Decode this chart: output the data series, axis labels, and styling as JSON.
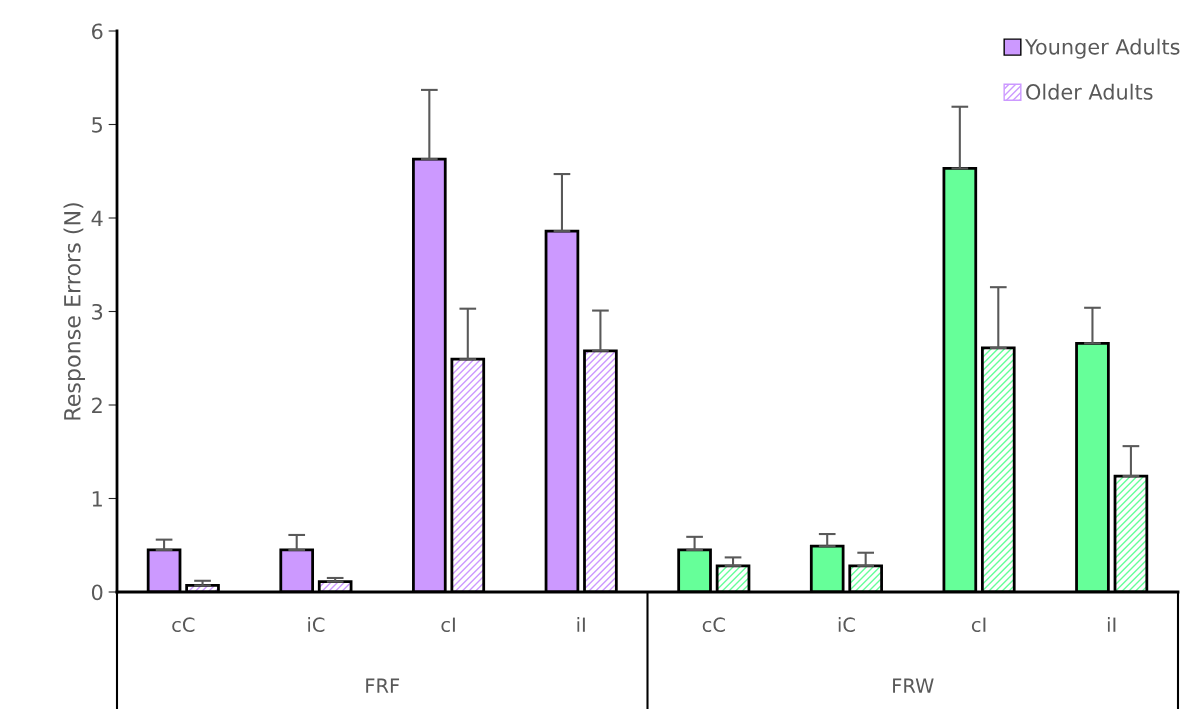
{
  "chart_data": {
    "type": "bar",
    "ylabel": "Response Errors (N)",
    "categories": [
      "cC",
      "iC",
      "cI",
      "iI",
      "cC",
      "iC",
      "cI",
      "iI"
    ],
    "series": [
      {
        "name": "Younger Adults",
        "colors": [
          "#cc99ff",
          "#cc99ff",
          "#cc99ff",
          "#cc99ff",
          "#66ff99",
          "#66ff99",
          "#66ff99",
          "#66ff99"
        ],
        "values": [
          0.45,
          0.45,
          4.63,
          3.86,
          0.45,
          0.49,
          4.53,
          2.66
        ],
        "errors": [
          [
            0.45,
            0.56
          ],
          [
            0.45,
            0.61
          ],
          [
            4.63,
            5.37
          ],
          [
            3.86,
            4.47
          ],
          [
            0.45,
            0.59
          ],
          [
            0.49,
            0.62
          ],
          [
            4.53,
            5.19
          ],
          [
            2.66,
            3.04
          ]
        ]
      },
      {
        "name": "Older Adults",
        "colors": [
          "#cc99ff",
          "#cc99ff",
          "#cc99ff",
          "#cc99ff",
          "#66ff99",
          "#66ff99",
          "#66ff99",
          "#66ff99"
        ],
        "values": [
          0.07,
          0.11,
          2.49,
          2.58,
          0.28,
          0.28,
          2.61,
          1.24
        ],
        "errors": [
          [
            0.07,
            0.12
          ],
          [
            0.11,
            0.15
          ],
          [
            2.49,
            3.03
          ],
          [
            2.58,
            3.01
          ],
          [
            0.28,
            0.37
          ],
          [
            0.28,
            0.42
          ],
          [
            2.61,
            3.26
          ],
          [
            1.24,
            1.56
          ]
        ]
      }
    ],
    "annotations": [
      "FRF",
      "FRW"
    ],
    "ylim": [
      0,
      6
    ],
    "yticks": [
      0,
      1,
      2,
      3,
      4,
      5,
      6
    ],
    "grid": false,
    "legend": "top right"
  }
}
